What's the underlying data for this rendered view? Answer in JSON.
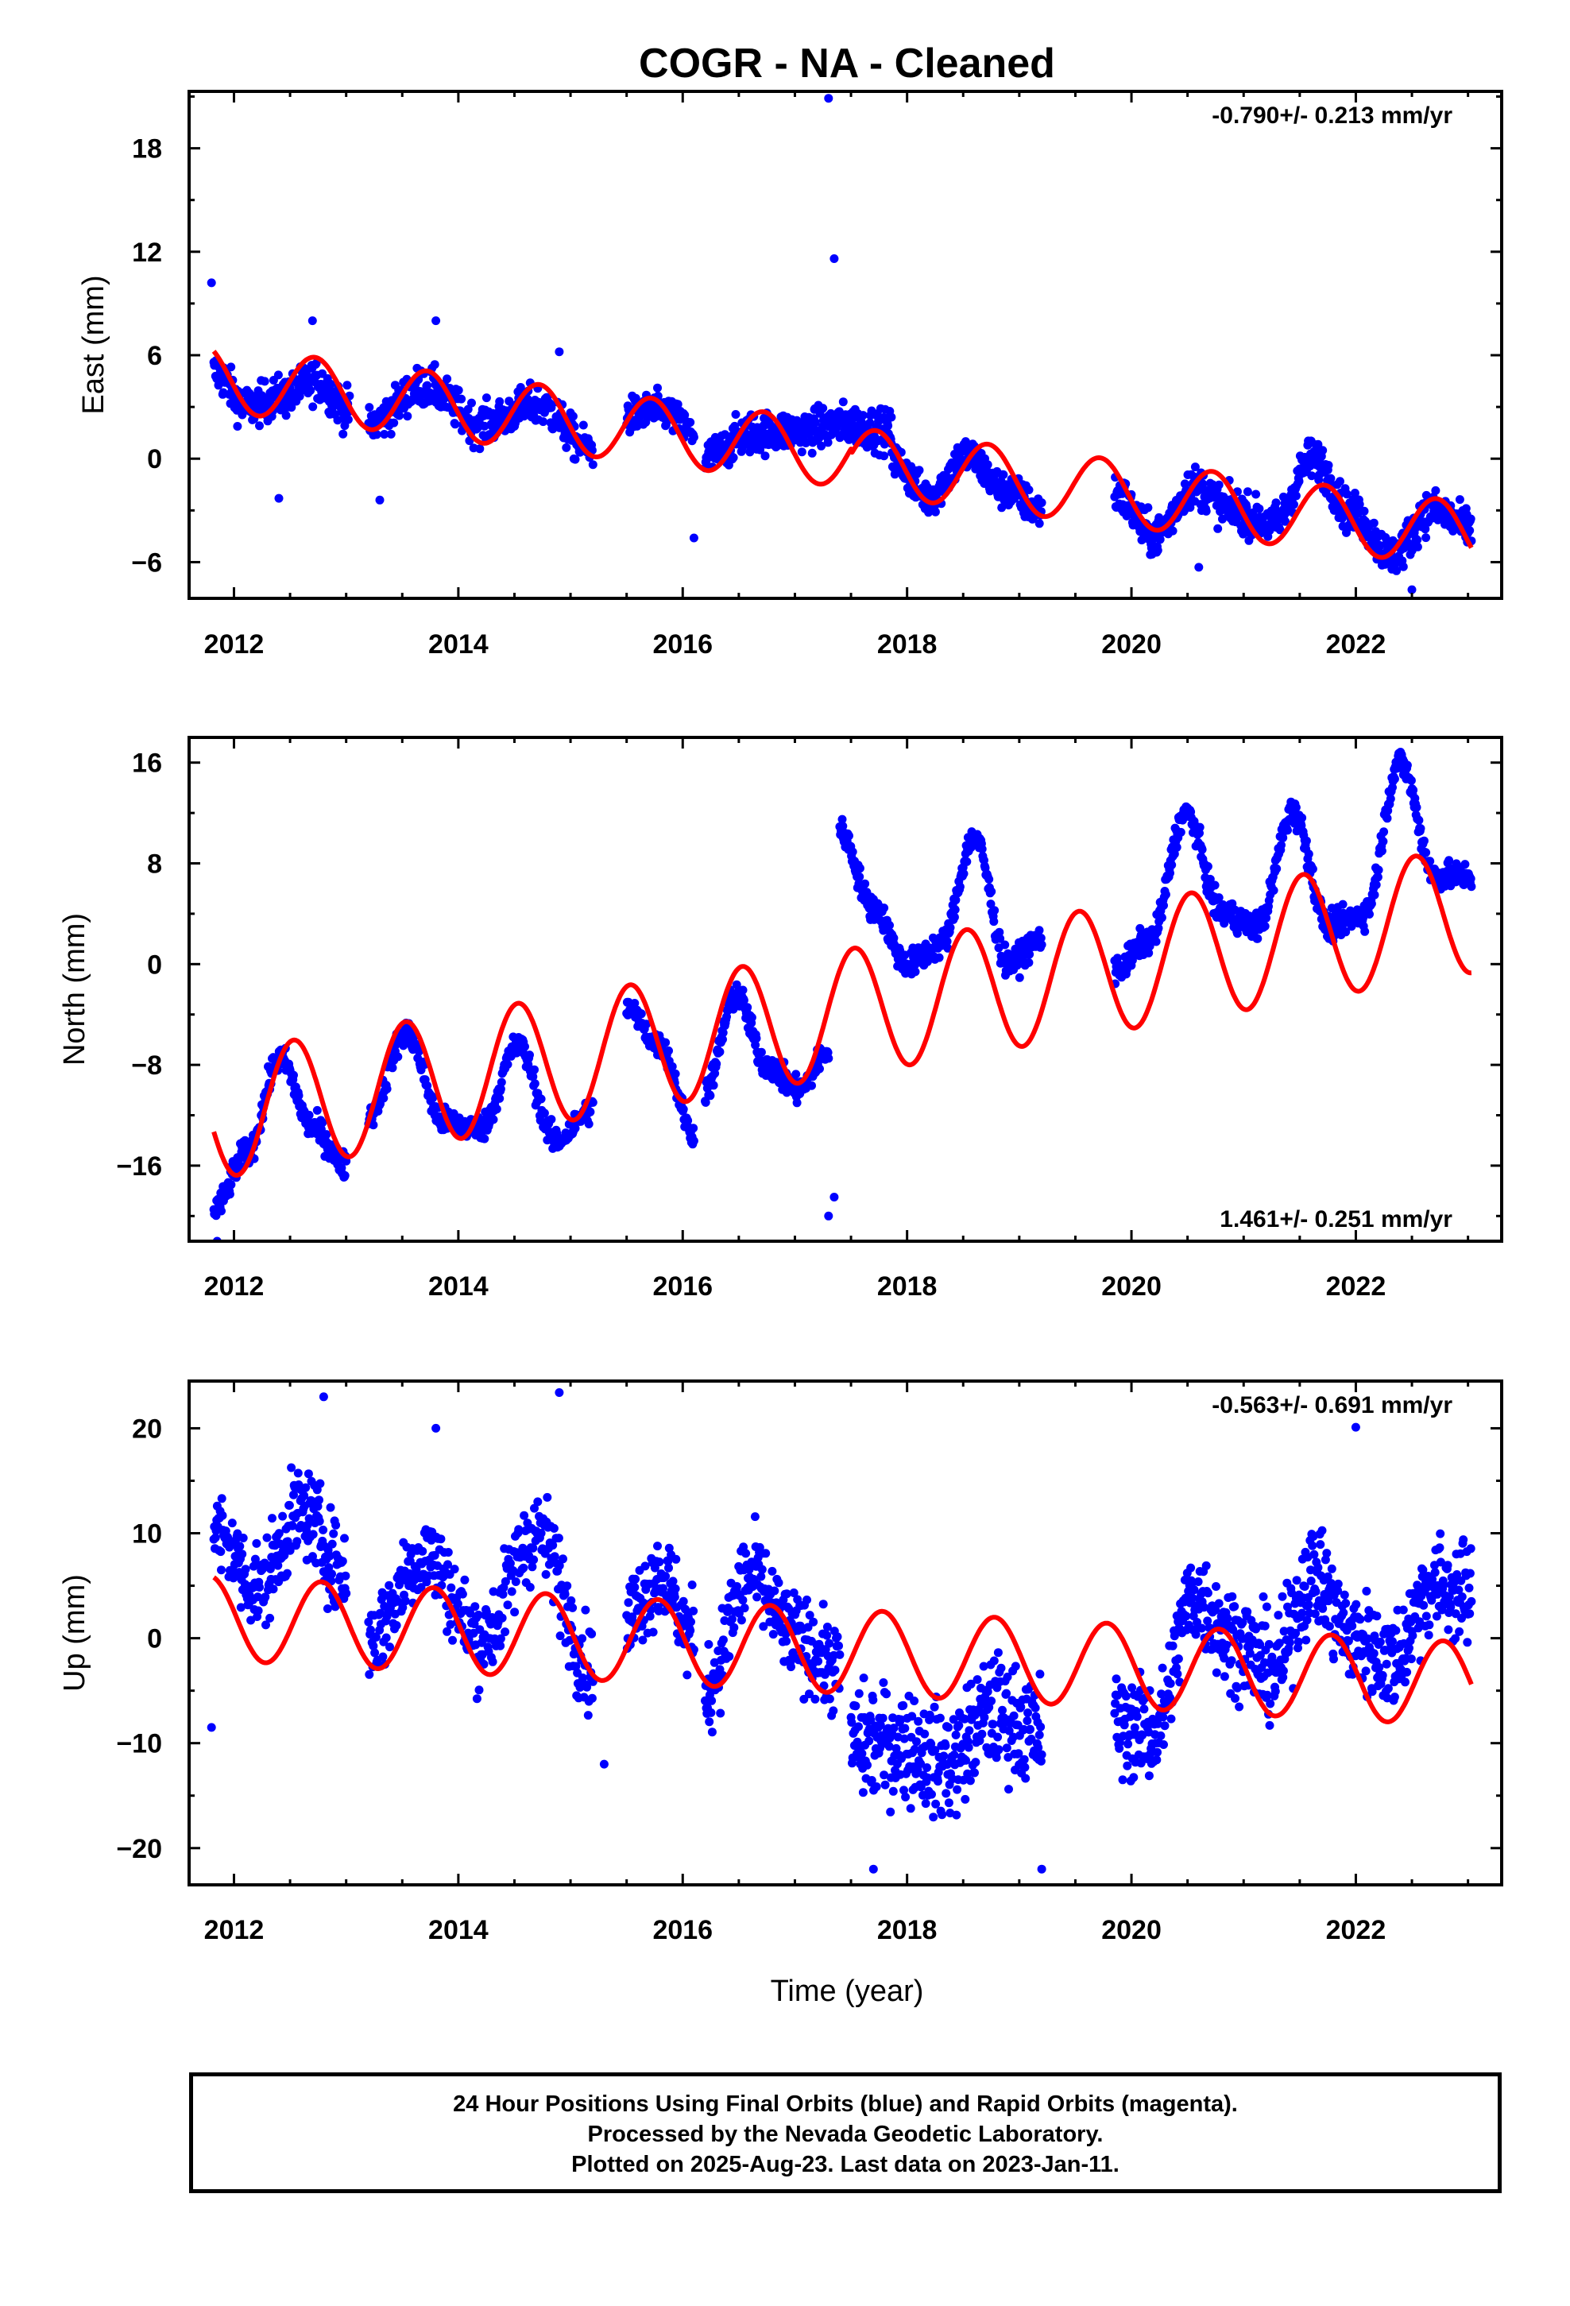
{
  "title": "COGR  - NA - Cleaned",
  "colors": {
    "data": "#0000ff",
    "model": "#ff0000",
    "frame": "#000000"
  },
  "xlabel": "Time (year)",
  "footer": {
    "line1": "24 Hour Positions Using Final Orbits (blue) and Rapid Orbits (magenta).",
    "line2": "Processed by the Nevada Geodetic Laboratory.",
    "line3": "Plotted on 2025-Aug-23. Last data on 2023-Jan-11."
  },
  "chart_data": [
    {
      "type": "scatter",
      "component": "east",
      "ylabel": "East (mm)",
      "rate_text": "-0.790+/- 0.213 mm/yr",
      "rate_position": "top-right",
      "xlim": [
        2011.6,
        2023.3
      ],
      "ylim": [
        -8.1,
        21.3
      ],
      "xticks": [
        2012,
        2014,
        2016,
        2018,
        2020,
        2022
      ],
      "yticks": [
        -6,
        0,
        6,
        12,
        18
      ],
      "series": [
        {
          "kind": "points",
          "color": "#0000ff",
          "segments": [
            {
              "t0": 2011.82,
              "t1": 2013.03,
              "y": [
                5.0,
                3.0,
                3.6,
                4.5,
                2.8
              ],
              "noise": 1.1,
              "n": 230
            },
            {
              "t0": 2013.2,
              "t1": 2015.2,
              "y": [
                2.0,
                4.2,
                2.0,
                3.1,
                0.5
              ],
              "noise": 1.1,
              "n": 330
            },
            {
              "t0": 2015.5,
              "t1": 2016.1,
              "y": [
                2.5,
                2.8,
                1.5
              ],
              "noise": 1.0,
              "n": 110
            },
            {
              "t0": 2016.2,
              "t1": 2017.86,
              "y": [
                0.0,
                1.5,
                1.6,
                2.0,
                1.6
              ],
              "noise": 1.1,
              "n": 330
            },
            {
              "t0": 2017.86,
              "t1": 2019.2,
              "y": [
                0.0,
                -2.2,
                0.2,
                -1.8,
                -3.0
              ],
              "noise": 1.0,
              "n": 260
            },
            {
              "t0": 2019.85,
              "t1": 2023.03,
              "y": [
                -2.0,
                -4.5,
                -1.6,
                -3.0,
                -3.8,
                0.0,
                -3.2,
                -5.6,
                -3.0,
                -4.0
              ],
              "noise": 1.1,
              "n": 620
            }
          ],
          "outliers": [
            [
              2011.8,
              10.2
            ],
            [
              2017.3,
              20.9
            ],
            [
              2017.35,
              11.6
            ],
            [
              2012.7,
              8.0
            ],
            [
              2013.8,
              8.0
            ],
            [
              2014.9,
              6.2
            ],
            [
              2013.3,
              -2.4
            ],
            [
              2012.4,
              -2.3
            ],
            [
              2016.1,
              -4.6
            ],
            [
              2020.6,
              -6.3
            ],
            [
              2022.5,
              -7.6
            ]
          ]
        },
        {
          "kind": "line",
          "color": "#ff0000",
          "model": {
            "t_ref": 2017.0,
            "intercept": 0.6,
            "slope": -0.79,
            "annual_amp": 1.9,
            "annual_peak": 2011.72,
            "offset_after": [
              [
                2017.5,
                -0.3
              ]
            ]
          }
        }
      ]
    },
    {
      "type": "scatter",
      "component": "north",
      "ylabel": "North (mm)",
      "rate_text": "1.461+/- 0.251 mm/yr",
      "rate_position": "bottom-right",
      "xlim": [
        2011.6,
        2023.3
      ],
      "ylim": [
        -22.0,
        18.0
      ],
      "xticks": [
        2012,
        2014,
        2016,
        2018,
        2020,
        2022
      ],
      "yticks": [
        -16,
        -8,
        0,
        8,
        16
      ],
      "series": [
        {
          "kind": "points",
          "color": "#0000ff",
          "segments": [
            {
              "t0": 2011.82,
              "t1": 2013.0,
              "y": [
                -19.5,
                -15.0,
                -7.5,
                -13.0,
                -16.0
              ],
              "noise": 1.0,
              "n": 230
            },
            {
              "t0": 2013.2,
              "t1": 2015.2,
              "y": [
                -12.0,
                -5.5,
                -12.5,
                -13.0,
                -6.5,
                -14.0,
                -11.5
              ],
              "noise": 1.0,
              "n": 330
            },
            {
              "t0": 2015.5,
              "t1": 2016.1,
              "y": [
                -3.5,
                -6.5,
                -13.5
              ],
              "noise": 0.9,
              "n": 110
            },
            {
              "t0": 2016.2,
              "t1": 2017.3,
              "y": [
                -10.0,
                -2.5,
                -8.0,
                -10.0,
                -7.0
              ],
              "noise": 1.0,
              "n": 220
            },
            {
              "t0": 2017.4,
              "t1": 2019.2,
              "y": [
                10.5,
                4.5,
                0.0,
                1.5,
                10.0,
                0.0,
                2.0
              ],
              "noise": 1.0,
              "n": 330
            },
            {
              "t0": 2019.85,
              "t1": 2023.03,
              "y": [
                -0.5,
                2.0,
                12.0,
                4.0,
                3.0,
                12.0,
                3.0,
                4.0,
                16.0,
                7.0,
                7.0
              ],
              "noise": 1.0,
              "n": 620
            }
          ],
          "outliers": [
            [
              2017.3,
              -20.0
            ],
            [
              2017.35,
              -18.5
            ],
            [
              2011.85,
              -22.0
            ]
          ]
        },
        {
          "kind": "line",
          "color": "#ff0000",
          "model": {
            "t_ref": 2017.0,
            "intercept": -4.5,
            "slope": 1.461,
            "annual_amp": 5.0,
            "annual_peak": 2012.53,
            "offset_after": [
              [
                2017.5,
                0.0
              ]
            ]
          }
        }
      ]
    },
    {
      "type": "scatter",
      "component": "up",
      "ylabel": "Up (mm)",
      "rate_text": "-0.563+/- 0.691 mm/yr",
      "rate_position": "top-right",
      "xlim": [
        2011.6,
        2023.3
      ],
      "ylim": [
        -23.5,
        24.5
      ],
      "xticks": [
        2012,
        2014,
        2016,
        2018,
        2020,
        2022
      ],
      "yticks": [
        -20,
        -10,
        0,
        10,
        20
      ],
      "series": [
        {
          "kind": "points",
          "color": "#0000ff",
          "segments": [
            {
              "t0": 2011.82,
              "t1": 2013.0,
              "y": [
                10.0,
                5.0,
                12.0,
                6.0
              ],
              "noise": 4.0,
              "n": 230
            },
            {
              "t0": 2013.2,
              "t1": 2015.2,
              "y": [
                0.0,
                8.0,
                0.0,
                10.0,
                -3.0
              ],
              "noise": 4.0,
              "n": 330
            },
            {
              "t0": 2015.5,
              "t1": 2016.1,
              "y": [
                2.0,
                6.0,
                0.0
              ],
              "noise": 4.0,
              "n": 110
            },
            {
              "t0": 2016.2,
              "t1": 2017.4,
              "y": [
                -5.0,
                6.0,
                0.0,
                -3.0
              ],
              "noise": 4.0,
              "n": 230
            },
            {
              "t0": 2017.5,
              "t1": 2019.2,
              "y": [
                -10.0,
                -10.0,
                -12.0,
                -7.0,
                -9.0
              ],
              "noise": 5.0,
              "n": 330
            },
            {
              "t0": 2019.85,
              "t1": 2023.03,
              "y": [
                -8.0,
                -9.0,
                4.0,
                0.0,
                -3.0,
                6.0,
                0.0,
                -2.0,
                5.0,
                4.0
              ],
              "noise": 4.5,
              "n": 620
            }
          ],
          "outliers": [
            [
              2012.8,
              23.0
            ],
            [
              2014.9,
              23.4
            ],
            [
              2013.8,
              20.0
            ],
            [
              2022.0,
              20.1
            ],
            [
              2019.2,
              -22.0
            ],
            [
              2017.7,
              -22.0
            ],
            [
              2011.8,
              -8.5
            ],
            [
              2015.3,
              -12.0
            ]
          ]
        },
        {
          "kind": "line",
          "color": "#ff0000",
          "model": {
            "t_ref": 2017.0,
            "intercept": -1.0,
            "slope": -0.563,
            "annual_amp": 4.0,
            "annual_peak": 2011.78,
            "offset_after": []
          }
        }
      ]
    }
  ]
}
